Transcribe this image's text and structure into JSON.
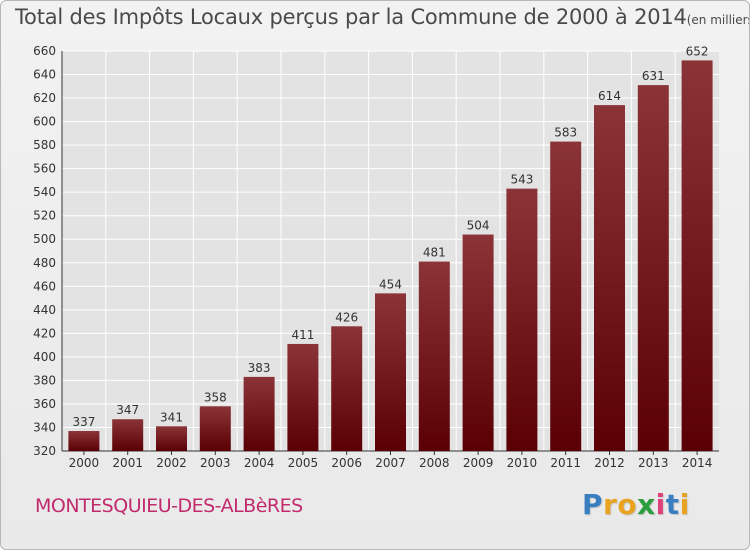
{
  "chart_data": {
    "type": "bar",
    "title": "Total des Impôts Locaux perçus par la Commune de 2000 à 2014",
    "title_unit": "(en milliers d'€)",
    "xlabel": "",
    "ylabel": "",
    "categories": [
      "2000",
      "2001",
      "2002",
      "2003",
      "2004",
      "2005",
      "2006",
      "2007",
      "2008",
      "2009",
      "2010",
      "2011",
      "2012",
      "2013",
      "2014"
    ],
    "values": [
      337,
      347,
      341,
      358,
      383,
      411,
      426,
      454,
      481,
      504,
      543,
      583,
      614,
      631,
      652
    ],
    "ylim": [
      320,
      660
    ],
    "yticks": [
      "320",
      "340",
      "360",
      "380",
      "400",
      "420",
      "440",
      "460",
      "480",
      "500",
      "520",
      "540",
      "560",
      "580",
      "600",
      "620",
      "640",
      "660"
    ],
    "grid": true,
    "colors": {
      "bar_top": "#8b3438",
      "bar_bottom": "#5a0005",
      "grid": "#ffffff",
      "axis": "#333333"
    }
  },
  "commune": "MONTESQUIEU-DES-ALBèRES",
  "logo": {
    "letters": [
      "P",
      "r",
      "o",
      "x",
      "i",
      "t",
      "i"
    ],
    "colors": [
      "#3a7ec2",
      "#e8a320",
      "#e8a320",
      "#2c9e3e",
      "#e0407a",
      "#3a7ec2",
      "#e8a320"
    ]
  }
}
